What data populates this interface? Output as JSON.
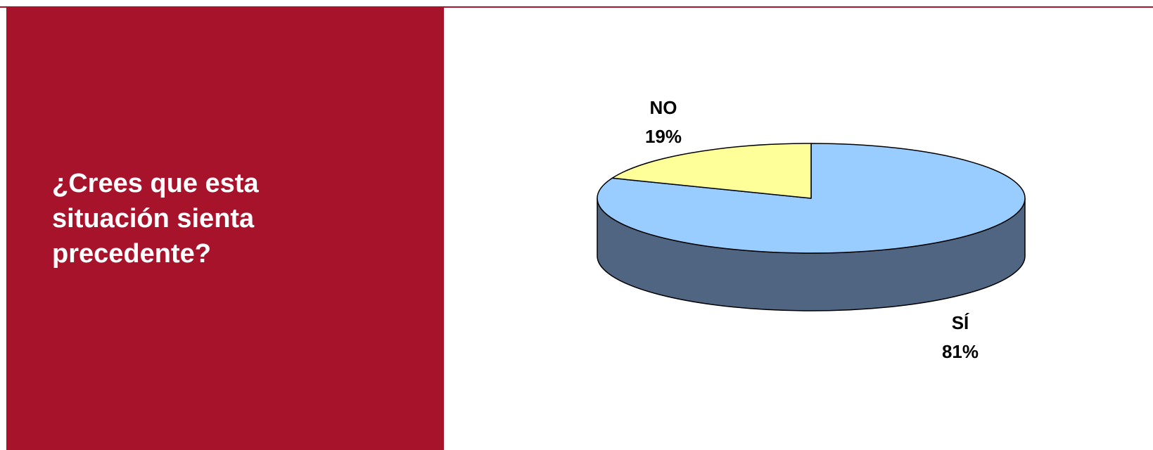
{
  "slide": {
    "question": "¿Crees que esta situación sienta precedente?"
  },
  "colors": {
    "panel": "#a8132c",
    "slice_si_top": "#99ccff",
    "slice_si_side": "#4f6582",
    "slice_no_top": "#ffff99",
    "slice_no_side": "#a6a663"
  },
  "chart_data": {
    "type": "pie",
    "three_d": true,
    "categories": [
      "SÍ",
      "NO"
    ],
    "values": [
      81,
      19
    ],
    "unit": "%",
    "labels": [
      {
        "category": "SÍ",
        "text": "SÍ",
        "percent_text": "81%"
      },
      {
        "category": "NO",
        "text": "NO",
        "percent_text": "19%"
      }
    ],
    "legend": false
  }
}
